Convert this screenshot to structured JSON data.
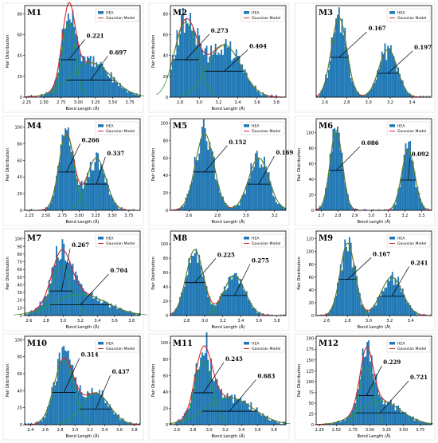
{
  "legend": {
    "hist_label": "HEA",
    "model_label": "Gaussian Model"
  },
  "colors": {
    "bar": "#1f77b4",
    "model": "#d62728",
    "fit": "#2ca02c",
    "arrow": "#000000"
  },
  "chart_data": [
    {
      "type": "bar",
      "id": "M1",
      "panel_label": "M1",
      "xlabel": "Bond Length (Å)",
      "ylabel": "Pair Distribution",
      "xlim": [
        2.22,
        3.9
      ],
      "ylim": [
        0,
        88
      ],
      "xticks": [
        "2.25",
        "2.50",
        "2.75",
        "3.00",
        "3.25",
        "3.50",
        "3.75"
      ],
      "yticks": [
        "0",
        "20",
        "40",
        "60",
        "80"
      ],
      "peaks": [
        {
          "mu": 2.86,
          "sigma": 0.094,
          "amp": 72
        },
        {
          "mu": 3.18,
          "sigma": 0.3,
          "amp": 33
        }
      ],
      "annotations": [
        {
          "text": "0.221",
          "x": 3.12,
          "y": 57
        },
        {
          "text": "0.697",
          "x": 3.45,
          "y": 41
        }
      ]
    },
    {
      "type": "bar",
      "id": "M2",
      "panel_label": "M2",
      "xlabel": "Bond Length (Å)",
      "ylabel": "Pair Distribution",
      "xlim": [
        2.7,
        3.9
      ],
      "ylim": [
        0,
        88
      ],
      "xticks": [
        "2.8",
        "3.0",
        "3.2",
        "3.4",
        "3.6",
        "3.8"
      ],
      "yticks": [
        "0",
        "20",
        "40",
        "60",
        "80"
      ],
      "peaks": [
        {
          "mu": 2.86,
          "sigma": 0.117,
          "amp": 72
        },
        {
          "mu": 3.26,
          "sigma": 0.172,
          "amp": 50
        }
      ],
      "annotations": [
        {
          "text": "0.273",
          "x": 3.12,
          "y": 62
        },
        {
          "text": "0.404",
          "x": 3.52,
          "y": 47
        }
      ]
    },
    {
      "type": "bar",
      "id": "M3",
      "panel_label": "M3",
      "xlabel": "",
      "ylabel": "",
      "xlim": [
        2.52,
        3.58
      ],
      "ylim": [
        0,
        115
      ],
      "xticks": [
        "2.6",
        "2.8",
        "3.0",
        "3.2",
        "3.4"
      ],
      "yticks": [],
      "peaks": [
        {
          "mu": 2.73,
          "sigma": 0.071,
          "amp": 100
        },
        {
          "mu": 3.18,
          "sigma": 0.084,
          "amp": 60
        }
      ],
      "annotations": [
        {
          "text": "0.167",
          "x": 3.0,
          "y": 84
        },
        {
          "text": "0.197",
          "x": 3.42,
          "y": 60
        }
      ]
    },
    {
      "type": "bar",
      "id": "M4",
      "panel_label": "M4",
      "xlabel": "Bond Length (Å)",
      "ylabel": "Pair Distribution",
      "xlim": [
        2.18,
        3.92
      ],
      "ylim": [
        0,
        110
      ],
      "xticks": [
        "2.25",
        "2.50",
        "2.75",
        "3.00",
        "3.25",
        "3.50",
        "3.75"
      ],
      "yticks": [
        "0",
        "20",
        "40",
        "60",
        "80",
        "100"
      ],
      "peaks": [
        {
          "mu": 2.81,
          "sigma": 0.113,
          "amp": 92
        },
        {
          "mu": 3.26,
          "sigma": 0.143,
          "amp": 63
        }
      ],
      "annotations": [
        {
          "text": "0.266",
          "x": 3.04,
          "y": 82
        },
        {
          "text": "0.337",
          "x": 3.42,
          "y": 66
        }
      ]
    },
    {
      "type": "bar",
      "id": "M5",
      "panel_label": "M5",
      "xlabel": "Bond Length (Å)",
      "ylabel": "Pair Distribution",
      "xlim": [
        2.47,
        3.28
      ],
      "ylim": [
        0,
        105
      ],
      "xticks": [
        "2.6",
        "2.8",
        "3.0",
        "3.2"
      ],
      "yticks": [
        "0",
        "20",
        "40",
        "60",
        "80",
        "100"
      ],
      "peaks": [
        {
          "mu": 2.71,
          "sigma": 0.065,
          "amp": 88
        },
        {
          "mu": 3.09,
          "sigma": 0.071,
          "amp": 60
        }
      ],
      "annotations": [
        {
          "text": "0.152",
          "x": 2.88,
          "y": 76
        },
        {
          "text": "0.169",
          "x": 3.21,
          "y": 64
        }
      ]
    },
    {
      "type": "bar",
      "id": "M6",
      "panel_label": "M6",
      "xlabel": "Bond Length (Å)",
      "ylabel": "Pair Distribution",
      "xlim": [
        2.67,
        3.36
      ],
      "ylim": [
        0,
        118
      ],
      "xticks": [
        "2.7",
        "2.8",
        "2.9",
        "3.0",
        "3.1",
        "3.2",
        "3.3"
      ],
      "yticks": [
        "0",
        "20",
        "40",
        "60",
        "80",
        "100"
      ],
      "peaks": [
        {
          "mu": 2.79,
          "sigma": 0.037,
          "amp": 103
        },
        {
          "mu": 3.22,
          "sigma": 0.039,
          "amp": 78
        }
      ],
      "annotations": [
        {
          "text": "0.086",
          "x": 2.94,
          "y": 84
        },
        {
          "text": "0.092",
          "x": 3.24,
          "y": 70
        }
      ]
    },
    {
      "type": "bar",
      "id": "M7",
      "panel_label": "M7",
      "xlabel": "Bond Length (Å)",
      "ylabel": "Pair Distribution",
      "xlim": [
        2.55,
        3.9
      ],
      "ylim": [
        0,
        110
      ],
      "xticks": [
        "2.6",
        "2.8",
        "3.0",
        "3.2",
        "3.4",
        "3.6",
        "3.8"
      ],
      "yticks": [
        "0",
        "10",
        "20",
        "30",
        "40",
        "50",
        "60",
        "70",
        "80",
        "90",
        "100"
      ],
      "peaks": [
        {
          "mu": 2.98,
          "sigma": 0.113,
          "amp": 64
        },
        {
          "mu": 3.2,
          "sigma": 0.3,
          "amp": 28
        }
      ],
      "annotations": [
        {
          "text": "0.267",
          "x": 3.1,
          "y": 89
        },
        {
          "text": "0.704",
          "x": 3.55,
          "y": 56
        }
      ]
    },
    {
      "type": "bar",
      "id": "M8",
      "panel_label": "M8",
      "xlabel": "Bond Length (Å)",
      "ylabel": "Pair Distribution",
      "xlim": [
        2.62,
        3.9
      ],
      "ylim": [
        0,
        118
      ],
      "xticks": [
        "2.8",
        "3.0",
        "3.2",
        "3.4",
        "3.6",
        "3.8"
      ],
      "yticks": [
        "0",
        "20",
        "40",
        "60",
        "80",
        "100"
      ],
      "peaks": [
        {
          "mu": 2.89,
          "sigma": 0.096,
          "amp": 92
        },
        {
          "mu": 3.33,
          "sigma": 0.117,
          "amp": 56
        }
      ],
      "annotations": [
        {
          "text": "0.225",
          "x": 3.14,
          "y": 82
        },
        {
          "text": "0.275",
          "x": 3.52,
          "y": 74
        }
      ]
    },
    {
      "type": "bar",
      "id": "M9",
      "panel_label": "M9",
      "xlabel": "Bond Length (Å)",
      "ylabel": "Pair Distribution",
      "xlim": [
        2.5,
        3.6
      ],
      "ylim": [
        0,
        132
      ],
      "xticks": [
        "2.6",
        "2.8",
        "3.0",
        "3.2",
        "3.4"
      ],
      "yticks": [
        "0",
        "20",
        "40",
        "60",
        "80",
        "100",
        "120"
      ],
      "peaks": [
        {
          "mu": 2.8,
          "sigma": 0.071,
          "amp": 113
        },
        {
          "mu": 3.22,
          "sigma": 0.102,
          "amp": 60
        }
      ],
      "annotations": [
        {
          "text": "0.167",
          "x": 3.04,
          "y": 93
        },
        {
          "text": "0.241",
          "x": 3.4,
          "y": 79
        }
      ]
    },
    {
      "type": "bar",
      "id": "M10",
      "panel_label": "M10",
      "xlabel": "Bond Length (Å)",
      "ylabel": "Pair Distribution",
      "xlim": [
        2.32,
        3.88
      ],
      "ylim": [
        0,
        104
      ],
      "xticks": [
        "2.4",
        "2.6",
        "2.8",
        "3.0",
        "3.2",
        "3.4",
        "3.6",
        "3.8"
      ],
      "yticks": [
        "0",
        "20",
        "40",
        "60",
        "80",
        "100"
      ],
      "peaks": [
        {
          "mu": 2.85,
          "sigma": 0.133,
          "amp": 76
        },
        {
          "mu": 3.28,
          "sigma": 0.186,
          "amp": 37
        }
      ],
      "annotations": [
        {
          "text": "0.314",
          "x": 3.08,
          "y": 80
        },
        {
          "text": "0.437",
          "x": 3.5,
          "y": 60
        }
      ]
    },
    {
      "type": "bar",
      "id": "M11",
      "panel_label": "M11",
      "xlabel": "Bond Length (Å)",
      "ylabel": "Pair Distribution",
      "xlim": [
        2.52,
        3.95
      ],
      "ylim": [
        0,
        108
      ],
      "xticks": [
        "2.6",
        "2.8",
        "3.0",
        "3.2",
        "3.4",
        "3.6",
        "3.8"
      ],
      "yticks": [
        "0",
        "20",
        "40",
        "60",
        "80",
        "100"
      ],
      "peaks": [
        {
          "mu": 2.93,
          "sigma": 0.104,
          "amp": 78
        },
        {
          "mu": 3.25,
          "sigma": 0.29,
          "amp": 33
        }
      ],
      "annotations": [
        {
          "text": "0.245",
          "x": 3.2,
          "y": 78
        },
        {
          "text": "0.683",
          "x": 3.6,
          "y": 57
        }
      ]
    },
    {
      "type": "bar",
      "id": "M12",
      "panel_label": "M12",
      "xlabel": "Bond Length (Å)",
      "ylabel": "Pair Distribution",
      "xlim": [
        2.2,
        3.92
      ],
      "ylim": [
        0,
        205
      ],
      "xticks": [
        "2.25",
        "2.50",
        "2.75",
        "3.00",
        "3.25",
        "3.50",
        "3.75"
      ],
      "yticks": [
        "0",
        "25",
        "50",
        "75",
        "100",
        "125",
        "150",
        "175",
        "200"
      ],
      "peaks": [
        {
          "mu": 2.95,
          "sigma": 0.097,
          "amp": 135
        },
        {
          "mu": 3.15,
          "sigma": 0.306,
          "amp": 55
        }
      ],
      "annotations": [
        {
          "text": "0.229",
          "x": 3.2,
          "y": 140
        },
        {
          "text": "0.721",
          "x": 3.6,
          "y": 105
        }
      ]
    }
  ]
}
